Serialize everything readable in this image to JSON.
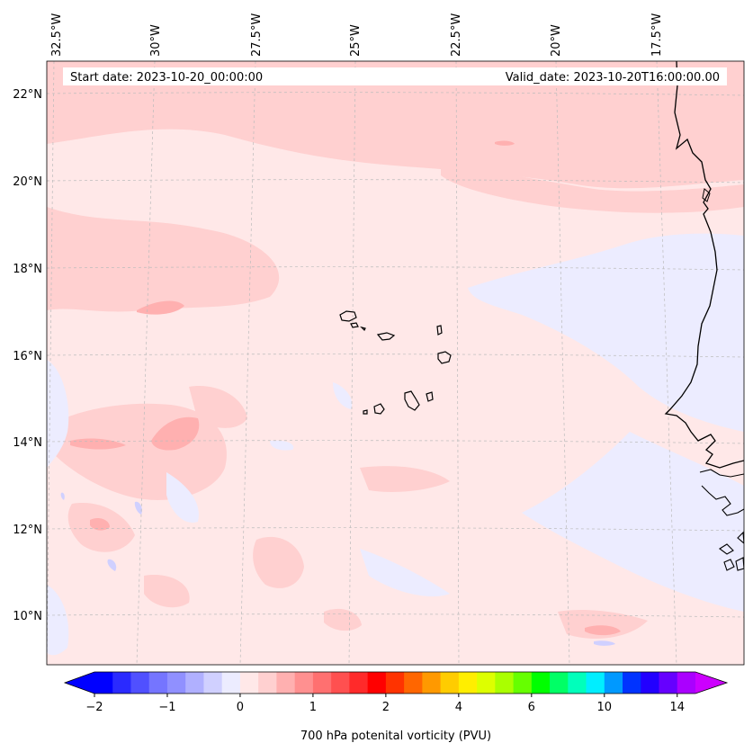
{
  "header": {
    "start_date": "Start date: 2023-10-20_00:00:00",
    "valid_date": "Valid_date: 2023-10-20T16:00:00.00"
  },
  "map": {
    "lon_labels": [
      "32.5°W",
      "30°W",
      "27.5°W",
      "25°W",
      "22.5°W",
      "20°W",
      "17.5°W"
    ],
    "lat_labels": [
      "22°N",
      "20°N",
      "18°N",
      "16°N",
      "14°N",
      "12°N",
      "10°N"
    ],
    "gridlines": true,
    "background_color": "#ffe8e8",
    "coastline_color": "#000000"
  },
  "colorbar": {
    "title": "700 hPa potenital vorticity (PVU)",
    "tick_labels": [
      "−2",
      "−1",
      "0",
      "1",
      "2",
      "4",
      "6",
      "10",
      "14"
    ],
    "extend": "both",
    "colors": [
      "#0000ff",
      "#2a2aff",
      "#5050ff",
      "#7575ff",
      "#9090ff",
      "#b0b0ff",
      "#d0d0ff",
      "#ececff",
      "#ffe8e8",
      "#ffd0d0",
      "#ffb0b0",
      "#ff9090",
      "#ff7070",
      "#ff5050",
      "#ff2a2a",
      "#ff0000",
      "#ff3300",
      "#ff6600",
      "#ff9900",
      "#ffcc00",
      "#ffee00",
      "#ddff00",
      "#aaff00",
      "#66ff00",
      "#00ff00",
      "#00ff66",
      "#00ffbb",
      "#00eeff",
      "#0099ff",
      "#0033ff",
      "#2200ff",
      "#6600ff",
      "#aa00ff"
    ],
    "under_color": "#0000ff",
    "over_color": "#cc00ff"
  }
}
